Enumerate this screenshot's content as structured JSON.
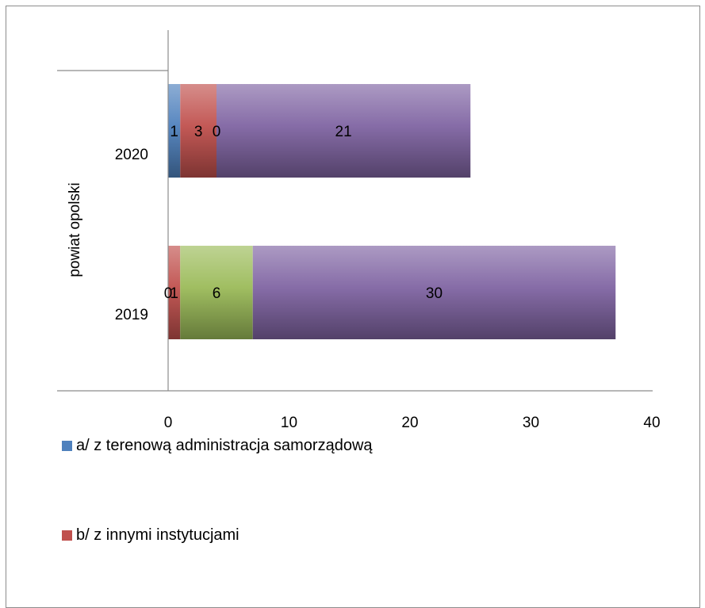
{
  "chart_data": {
    "type": "bar",
    "orientation": "horizontal",
    "stacked": true,
    "group_label": "powiat opolski",
    "categories": [
      "2020",
      "2019"
    ],
    "xlim": [
      0,
      40
    ],
    "x_ticks": [
      "0",
      "10",
      "20",
      "30",
      "40"
    ],
    "series": [
      {
        "name": "a/  z terenową administracja samorządową",
        "color": "#4f81bd",
        "values": [
          1,
          0
        ]
      },
      {
        "name": "b/  z innymi instytucjami",
        "color": "#c0504d",
        "values": [
          3,
          1
        ]
      },
      {
        "color": "#9bbb59",
        "values": [
          0,
          6
        ]
      },
      {
        "color": "#8064a2",
        "values": [
          21,
          30
        ]
      }
    ],
    "legend_visible_entries": 2,
    "legend_position": "bottom"
  }
}
